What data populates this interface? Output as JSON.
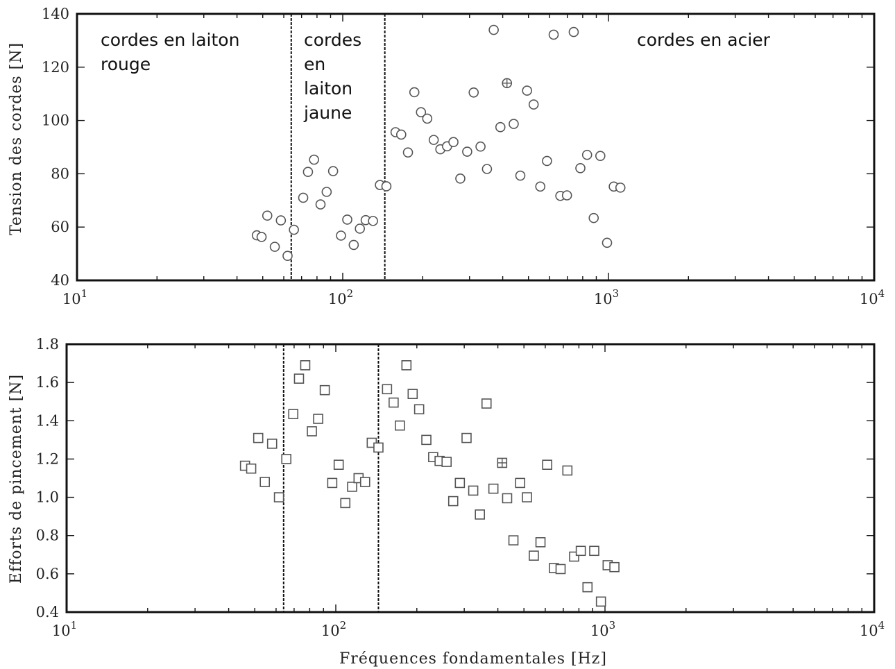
{
  "chart_data": [
    {
      "type": "scatter",
      "xlabel": "",
      "ylabel": "Tension des cordes [N]",
      "xscale": "log",
      "xlim": [
        10,
        10000
      ],
      "ylim": [
        40,
        140
      ],
      "yticks": [
        "40",
        "60",
        "80",
        "100",
        "120",
        "140"
      ],
      "xticks": [
        {
          "base": "10",
          "exp": "1"
        },
        {
          "base": "10",
          "exp": "2"
        },
        {
          "base": "10",
          "exp": "3"
        },
        {
          "base": "10",
          "exp": "4"
        }
      ],
      "marker": "circle",
      "vlines": [
        64,
        144
      ],
      "annotations": [
        {
          "lines": [
            "cordes en laiton",
            "rouge"
          ]
        },
        {
          "lines": [
            "cordes",
            "en",
            "laiton",
            "jaune"
          ]
        },
        {
          "lines": [
            "cordes en acier"
          ]
        }
      ],
      "highlight": [
        415,
        114
      ],
      "points": [
        [
          47.5,
          56.9
        ],
        [
          49.5,
          56.3
        ],
        [
          52,
          64.3
        ],
        [
          55.5,
          52.6
        ],
        [
          58.5,
          62.5
        ],
        [
          62,
          49.2
        ],
        [
          65.5,
          59
        ],
        [
          71,
          71
        ],
        [
          74,
          80.7
        ],
        [
          78,
          85.3
        ],
        [
          82.5,
          68.5
        ],
        [
          87,
          73.2
        ],
        [
          92,
          81
        ],
        [
          98.5,
          56.8
        ],
        [
          104,
          62.8
        ],
        [
          110,
          53.3
        ],
        [
          116,
          59.4
        ],
        [
          122,
          62.6
        ],
        [
          130,
          62.3
        ],
        [
          138,
          75.8
        ],
        [
          146,
          75.3
        ],
        [
          158,
          95.6
        ],
        [
          166,
          94.7
        ],
        [
          176,
          88
        ],
        [
          186,
          110.6
        ],
        [
          197,
          103.1
        ],
        [
          208,
          100.7
        ],
        [
          220,
          92.7
        ],
        [
          233,
          89.2
        ],
        [
          247,
          90.3
        ],
        [
          261,
          91.9
        ],
        [
          277,
          78.2
        ],
        [
          294,
          88.3
        ],
        [
          311,
          110.5
        ],
        [
          330,
          90.2
        ],
        [
          349,
          81.8
        ],
        [
          370,
          134
        ],
        [
          392,
          97.5
        ],
        [
          440,
          98.7
        ],
        [
          466,
          79.3
        ],
        [
          494,
          111.2
        ],
        [
          523,
          106
        ],
        [
          554,
          75.2
        ],
        [
          587,
          84.8
        ],
        [
          622,
          132.2
        ],
        [
          659,
          71.7
        ],
        [
          698,
          71.9
        ],
        [
          740,
          133.2
        ],
        [
          784,
          82.1
        ],
        [
          831,
          87.1
        ],
        [
          880,
          63.4
        ],
        [
          932,
          86.7
        ],
        [
          988,
          54.1
        ],
        [
          1047,
          75.2
        ],
        [
          1109,
          74.8
        ]
      ]
    },
    {
      "type": "scatter",
      "xlabel": "Fréquences fondamentales [Hz]",
      "ylabel": "Efforts de pincement [N]",
      "xscale": "log",
      "xlim": [
        10,
        10000
      ],
      "ylim": [
        0.4,
        1.8
      ],
      "yticks": [
        "0.4",
        "0.6",
        "0.8",
        "1.0",
        "1.2",
        "1.4",
        "1.6",
        "1.8"
      ],
      "xticks": [
        {
          "base": "10",
          "exp": "1"
        },
        {
          "base": "10",
          "exp": "2"
        },
        {
          "base": "10",
          "exp": "3"
        },
        {
          "base": "10",
          "exp": "4"
        }
      ],
      "marker": "square",
      "vlines": [
        64,
        144
      ],
      "highlight": [
        415,
        1.18
      ],
      "points": [
        [
          46,
          1.165
        ],
        [
          48.5,
          1.15
        ],
        [
          51.5,
          1.31
        ],
        [
          54.5,
          1.08
        ],
        [
          58,
          1.28
        ],
        [
          61.5,
          1.0
        ],
        [
          65.5,
          1.2
        ],
        [
          69.5,
          1.435
        ],
        [
          73,
          1.62
        ],
        [
          77,
          1.69
        ],
        [
          81.5,
          1.345
        ],
        [
          86,
          1.41
        ],
        [
          91,
          1.56
        ],
        [
          97,
          1.075
        ],
        [
          102.5,
          1.17
        ],
        [
          108.5,
          0.97
        ],
        [
          115,
          1.055
        ],
        [
          121.5,
          1.1
        ],
        [
          128.5,
          1.08
        ],
        [
          136,
          1.285
        ],
        [
          144,
          1.26
        ],
        [
          155,
          1.565
        ],
        [
          164,
          1.495
        ],
        [
          173,
          1.375
        ],
        [
          183,
          1.69
        ],
        [
          193,
          1.54
        ],
        [
          204,
          1.46
        ],
        [
          217,
          1.3
        ],
        [
          230,
          1.21
        ],
        [
          243,
          1.19
        ],
        [
          258,
          1.185
        ],
        [
          273,
          0.98
        ],
        [
          289,
          1.075
        ],
        [
          306,
          1.31
        ],
        [
          324,
          1.035
        ],
        [
          343,
          0.91
        ],
        [
          363,
          1.49
        ],
        [
          385,
          1.045
        ],
        [
          433,
          0.995
        ],
        [
          457,
          0.775
        ],
        [
          484,
          1.075
        ],
        [
          513,
          1.0
        ],
        [
          544,
          0.695
        ],
        [
          576,
          0.765
        ],
        [
          610,
          1.17
        ],
        [
          646,
          0.63
        ],
        [
          684,
          0.625
        ],
        [
          725,
          1.14
        ],
        [
          768,
          0.69
        ],
        [
          813,
          0.72
        ],
        [
          861,
          0.53
        ],
        [
          912,
          0.72
        ],
        [
          966,
          0.455
        ],
        [
          1023,
          0.645
        ],
        [
          1084,
          0.635
        ]
      ]
    }
  ]
}
